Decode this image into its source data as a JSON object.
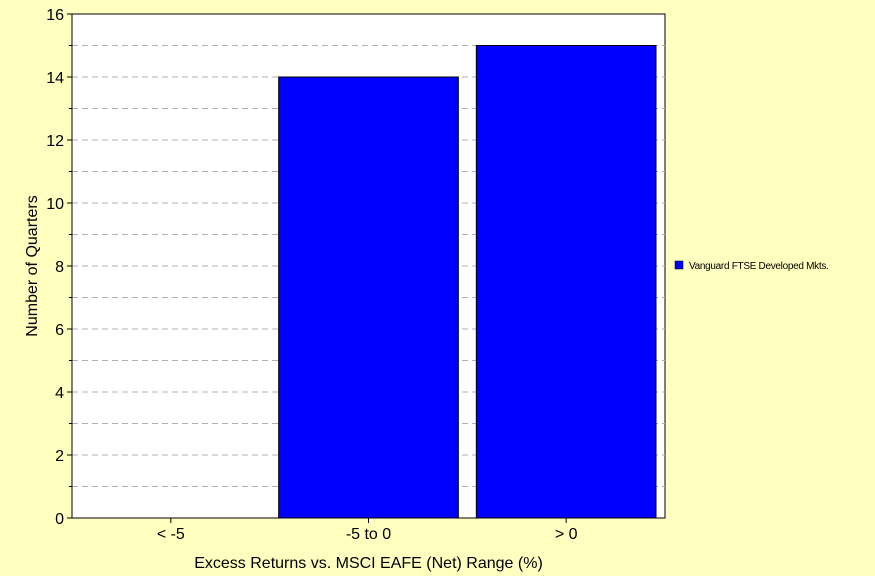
{
  "chart_data": {
    "type": "bar",
    "title": "",
    "xlabel": "Excess Returns vs. MSCI EAFE (Net) Range (%)",
    "ylabel": "Number of Quarters",
    "categories": [
      "< -5",
      "-5 to 0",
      "> 0"
    ],
    "series": [
      {
        "name": "Vanguard FTSE Developed Mkts.",
        "values": [
          0,
          14,
          15
        ],
        "color": "#0000ff"
      }
    ],
    "ylim": [
      0,
      16
    ],
    "yticks": [
      0,
      2,
      4,
      6,
      8,
      10,
      12,
      14,
      16
    ],
    "grid": true,
    "legend_position": "right"
  },
  "colors": {
    "background": "#ffffc0",
    "plot_background": "#ffffff",
    "bar_fill": "#0000ff",
    "grid": "#b0b0b0"
  }
}
